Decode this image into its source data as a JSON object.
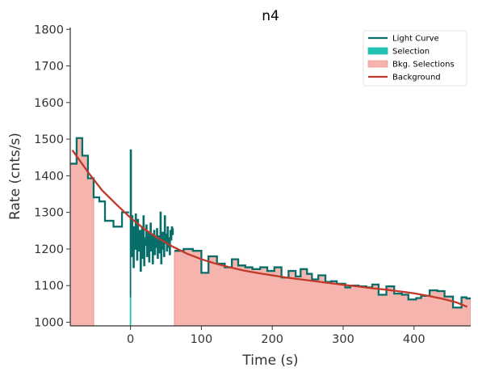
{
  "chart_data": {
    "type": "line",
    "title": "n4",
    "xlabel": "Time (s)",
    "ylabel": "Rate (cnts/s)",
    "xlim": [
      -85,
      480
    ],
    "ylim": [
      990,
      1805
    ],
    "xticks": [
      0,
      100,
      200,
      300,
      400
    ],
    "yticks": [
      1000,
      1100,
      1200,
      1300,
      1400,
      1500,
      1600,
      1700,
      1800
    ],
    "grid": false,
    "legend_position": "top-right",
    "legend": [
      "Light Curve",
      "Selection",
      "Bkg. Selections",
      "Background"
    ],
    "colors": {
      "light_curve": "#076e6a",
      "selection": "#20c0b2",
      "bkg_selection": "#f5b5ae",
      "bkg_selection_edge": "#ee9c94",
      "background": "#c0392b",
      "axis": "#333333"
    },
    "selection_range": [
      -1,
      1
    ],
    "bkg_selection_ranges": [
      [
        -85,
        -52
      ],
      [
        62,
        480
      ]
    ],
    "light_curve_coarse_pre": {
      "edges": [
        -85,
        -76,
        -68,
        -60,
        -52,
        -44,
        -36,
        -24,
        -12,
        -2
      ],
      "values": [
        1433,
        1503,
        1455,
        1393,
        1341,
        1330,
        1277,
        1261,
        1300
      ]
    },
    "light_curve_fine": {
      "x": [
        -1,
        0,
        1,
        2,
        3,
        4,
        5,
        6,
        7,
        8,
        9,
        10,
        11,
        12,
        13,
        14,
        15,
        16,
        17,
        18,
        19,
        20,
        21,
        22,
        23,
        24,
        25,
        26,
        27,
        28,
        29,
        30,
        31,
        32,
        33,
        34,
        35,
        36,
        37,
        38,
        39,
        40,
        41,
        42,
        43,
        44,
        45,
        46,
        47,
        48,
        49,
        50,
        51,
        52,
        53,
        54,
        55,
        56,
        57,
        58,
        59,
        60
      ],
      "y": [
        1070,
        1470,
        1180,
        1290,
        1205,
        1150,
        1260,
        1200,
        1295,
        1230,
        1170,
        1280,
        1210,
        1195,
        1250,
        1140,
        1220,
        1260,
        1175,
        1290,
        1155,
        1230,
        1210,
        1265,
        1180,
        1200,
        1245,
        1165,
        1215,
        1270,
        1195,
        1240,
        1160,
        1215,
        1250,
        1185,
        1230,
        1205,
        1255,
        1175,
        1210,
        1235,
        1190,
        1300,
        1160,
        1220,
        1245,
        1200,
        1180,
        1290,
        1215,
        1240,
        1195,
        1260,
        1205,
        1230,
        1185,
        1250,
        1225,
        1260,
        1240,
        1255
      ]
    },
    "light_curve_coarse_post": {
      "edges": [
        62,
        75,
        88,
        100,
        110,
        122,
        133,
        143,
        152,
        162,
        172,
        183,
        193,
        203,
        213,
        223,
        233,
        240,
        249,
        256,
        265,
        275,
        283,
        291,
        303,
        310,
        322,
        333,
        341,
        350,
        361,
        372,
        383,
        392,
        403,
        410,
        422,
        433,
        443,
        455,
        460,
        467,
        474,
        480
      ],
      "values": [
        1195,
        1200,
        1195,
        1135,
        1180,
        1160,
        1150,
        1172,
        1155,
        1150,
        1145,
        1150,
        1140,
        1150,
        1122,
        1140,
        1125,
        1145,
        1132,
        1117,
        1128,
        1110,
        1112,
        1105,
        1095,
        1100,
        1098,
        1095,
        1103,
        1075,
        1098,
        1078,
        1075,
        1062,
        1066,
        1072,
        1087,
        1085,
        1070,
        1040,
        1040,
        1068,
        1065
      ]
    },
    "background_model": {
      "x": [
        -82,
        -60,
        -40,
        -20,
        0,
        20,
        40,
        60,
        80,
        100,
        120,
        140,
        160,
        180,
        200,
        220,
        240,
        260,
        280,
        300,
        320,
        340,
        360,
        380,
        400,
        420,
        440,
        460,
        475
      ],
      "y": [
        1470,
        1410,
        1360,
        1322,
        1285,
        1254,
        1228,
        1206,
        1187,
        1172,
        1160,
        1150,
        1141,
        1134,
        1128,
        1122,
        1117,
        1112,
        1107,
        1102,
        1098,
        1093,
        1089,
        1084,
        1079,
        1072,
        1064,
        1054,
        1042
      ]
    }
  }
}
